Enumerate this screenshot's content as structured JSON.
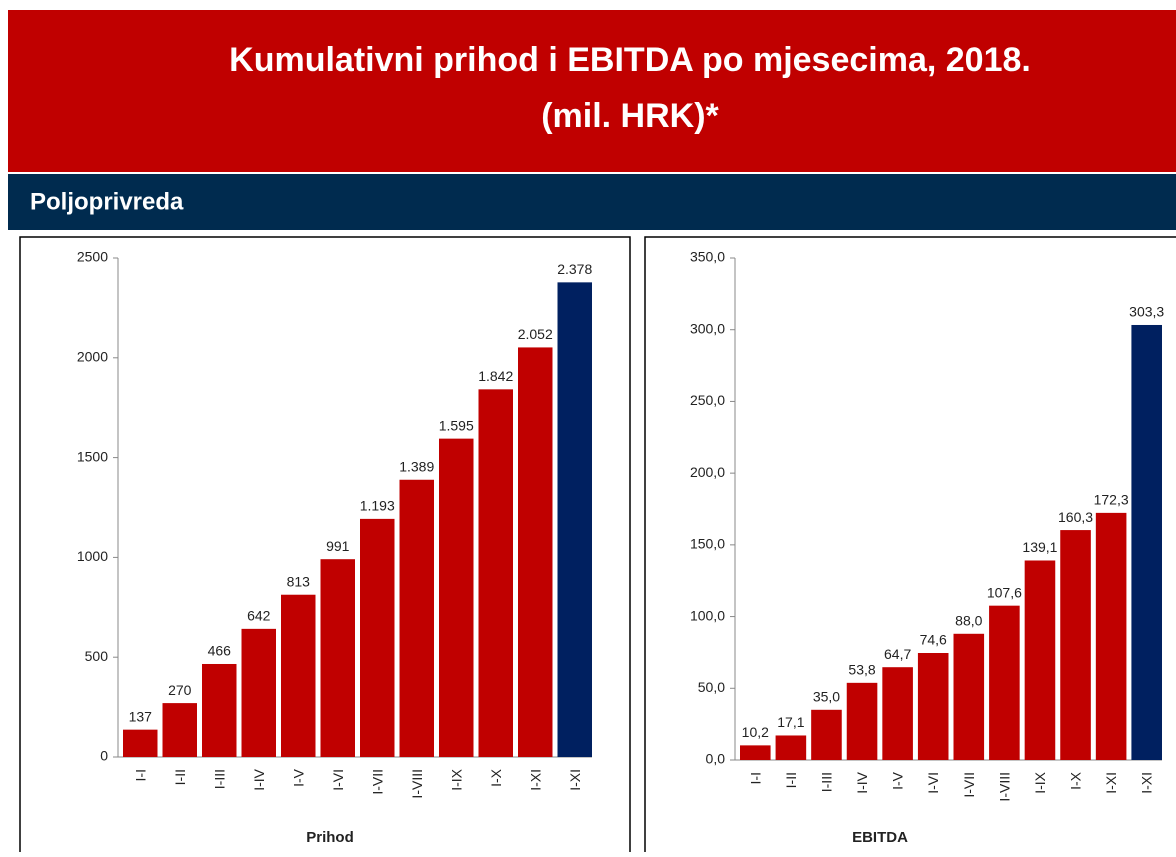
{
  "header": {
    "title": "Kumulativni prihod i EBITDA po mjesecima, 2018.",
    "subtitle": "(mil. HRK)*"
  },
  "section": "Poljoprivreda",
  "chart_data": [
    {
      "type": "bar",
      "xlabel": "Prihod",
      "categories": [
        "I-I",
        "I-II",
        "I-III",
        "I-IV",
        "I-V",
        "I-VI",
        "I-VII",
        "I-VIII",
        "I-IX",
        "I-X",
        "I-XI",
        "I-XI"
      ],
      "values": [
        137,
        270,
        466,
        642,
        813,
        991,
        1193,
        1389,
        1595,
        1842,
        2052,
        2378
      ],
      "value_labels": [
        "137",
        "270",
        "466",
        "642",
        "813",
        "991",
        "1.193",
        "1.389",
        "1.595",
        "1.842",
        "2.052",
        "2.378"
      ],
      "colors": [
        "#c00000",
        "#c00000",
        "#c00000",
        "#c00000",
        "#c00000",
        "#c00000",
        "#c00000",
        "#c00000",
        "#c00000",
        "#c00000",
        "#c00000",
        "#002060"
      ],
      "ylim": [
        0,
        2500
      ],
      "yticks": [
        0,
        500,
        1000,
        1500,
        2000,
        2500
      ]
    },
    {
      "type": "bar",
      "xlabel": "EBITDA",
      "categories": [
        "I-I",
        "I-II",
        "I-III",
        "I-IV",
        "I-V",
        "I-VI",
        "I-VII",
        "I-VIII",
        "I-IX",
        "I-X",
        "I-XI",
        "I-XI"
      ],
      "values": [
        10.2,
        17.1,
        35.0,
        53.8,
        64.7,
        74.6,
        88.0,
        107.6,
        139.1,
        160.3,
        172.3,
        303.3
      ],
      "value_labels": [
        "10,2",
        "17,1",
        "35,0",
        "53,8",
        "64,7",
        "74,6",
        "88,0",
        "107,6",
        "139,1",
        "160,3",
        "172,3",
        "303,3"
      ],
      "colors": [
        "#c00000",
        "#c00000",
        "#c00000",
        "#c00000",
        "#c00000",
        "#c00000",
        "#c00000",
        "#c00000",
        "#c00000",
        "#c00000",
        "#c00000",
        "#002060"
      ],
      "ylim": [
        0,
        350
      ],
      "yticks": [
        {
          "value": 0,
          "label": "0,0"
        },
        {
          "value": 50,
          "label": "50,0"
        },
        {
          "value": 100,
          "label": "100,0"
        },
        {
          "value": 150,
          "label": "150,0"
        },
        {
          "value": 200,
          "label": "200,0"
        },
        {
          "value": 250,
          "label": "250,0"
        },
        {
          "value": 300,
          "label": "300,0"
        },
        {
          "value": 350,
          "label": "350,0"
        }
      ]
    }
  ]
}
